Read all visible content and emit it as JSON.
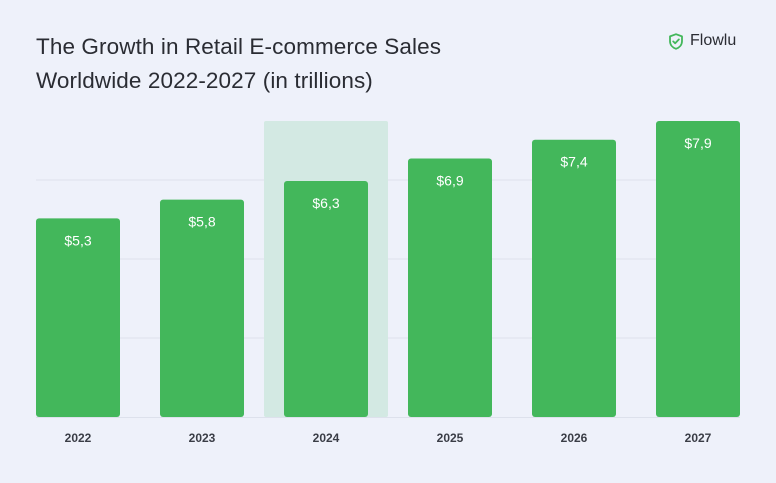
{
  "header": {
    "title_line1": "The Growth in Retail E-commerce Sales",
    "title_line2": "Worldwide 2022-2027 (in trillions)",
    "brand_name": "Flowlu",
    "brand_icon": "shield-check-icon"
  },
  "colors": {
    "background": "#eef1fa",
    "bar": "#43b75b",
    "highlight": "#d3e9e3",
    "grid": "#dde1ec",
    "text": "#2a2c33"
  },
  "chart_data": {
    "type": "bar",
    "title": "The Growth in Retail E-commerce Sales Worldwide 2022-2027 (in trillions)",
    "categories": [
      "2022",
      "2023",
      "2024",
      "2025",
      "2026",
      "2027"
    ],
    "values": [
      5.3,
      5.8,
      6.3,
      6.9,
      7.4,
      7.9
    ],
    "data_labels": [
      "$5,3",
      "$5,8",
      "$6,3",
      "$6,9",
      "$7,4",
      "$7,9"
    ],
    "highlighted_category": "2024",
    "xlabel": "",
    "ylabel": "",
    "ylim": [
      0,
      7.9
    ],
    "grid": true,
    "legend": "none"
  }
}
